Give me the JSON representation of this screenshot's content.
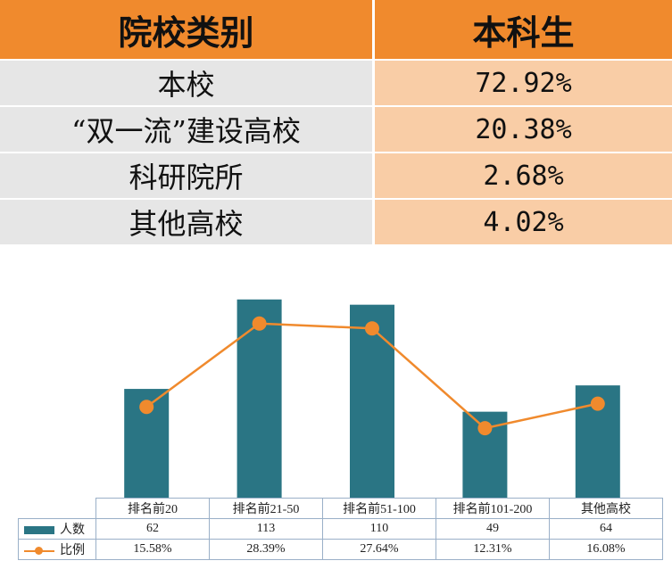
{
  "table": {
    "headers": [
      "院校类别",
      "本科生"
    ],
    "rows": [
      {
        "category": "本校",
        "value": "72.92%"
      },
      {
        "category": "“双一流”建设高校",
        "value": "20.38%"
      },
      {
        "category": "科研院所",
        "value": "2.68%"
      },
      {
        "category": "其他高校",
        "value": "4.02%"
      }
    ]
  },
  "chart_data": {
    "type": "bar",
    "categories": [
      "排名前20",
      "排名前21-50",
      "排名前51-100",
      "排名前101-200",
      "其他高校"
    ],
    "series": [
      {
        "name": "人数",
        "type": "bar",
        "values": [
          62,
          113,
          110,
          49,
          64
        ],
        "labels": [
          "62",
          "113",
          "110",
          "49",
          "64"
        ]
      },
      {
        "name": "比例",
        "type": "line",
        "values": [
          15.58,
          28.39,
          27.64,
          12.31,
          16.08
        ],
        "labels": [
          "15.58%",
          "28.39%",
          "27.64%",
          "12.31%",
          "16.08%"
        ]
      }
    ],
    "colors": {
      "bar": "#2a7584",
      "line": "#f08a2d"
    },
    "grid": false,
    "legend": "bottom-left data table"
  }
}
